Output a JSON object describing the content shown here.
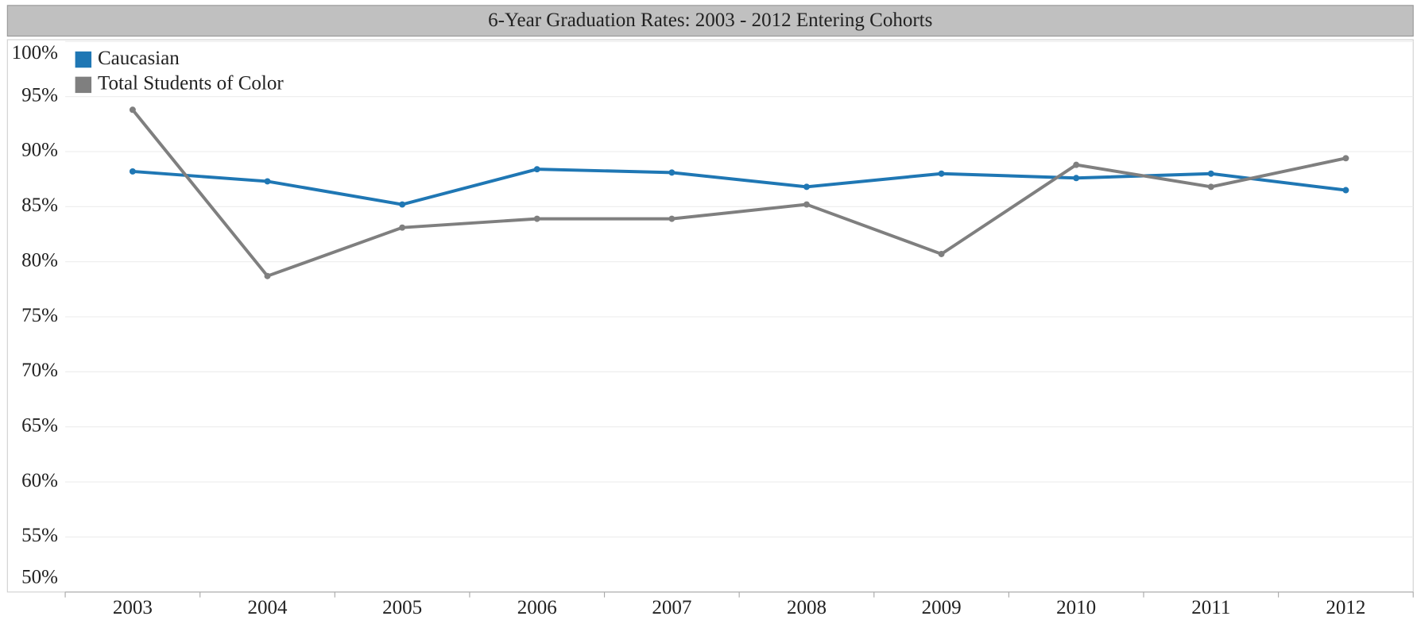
{
  "chart_data": {
    "type": "line",
    "title": "6-Year Graduation Rates: 2003 - 2012 Entering Cohorts",
    "categories": [
      "2003",
      "2004",
      "2005",
      "2006",
      "2007",
      "2008",
      "2009",
      "2010",
      "2011",
      "2012"
    ],
    "series": [
      {
        "name": "Caucasian",
        "color": "#1f77b4",
        "values": [
          88.2,
          87.3,
          85.2,
          88.4,
          88.1,
          86.8,
          88.0,
          87.6,
          88.0,
          86.5
        ]
      },
      {
        "name": "Total Students of Color",
        "color": "#7f7f7f",
        "values": [
          93.8,
          78.7,
          83.1,
          83.9,
          83.9,
          85.2,
          80.7,
          88.8,
          86.8,
          89.4
        ]
      }
    ],
    "ylim": [
      50,
      100
    ],
    "yticks": [
      {
        "value": 50,
        "label": "50%"
      },
      {
        "value": 55,
        "label": "55%"
      },
      {
        "value": 60,
        "label": "60%"
      },
      {
        "value": 65,
        "label": "65%"
      },
      {
        "value": 70,
        "label": "70%"
      },
      {
        "value": 75,
        "label": "75%"
      },
      {
        "value": 80,
        "label": "80%"
      },
      {
        "value": 85,
        "label": "85%"
      },
      {
        "value": 90,
        "label": "90%"
      },
      {
        "value": 95,
        "label": "95%"
      },
      {
        "value": 100,
        "label": "100%"
      }
    ],
    "grid": true,
    "legend": "top-left"
  }
}
